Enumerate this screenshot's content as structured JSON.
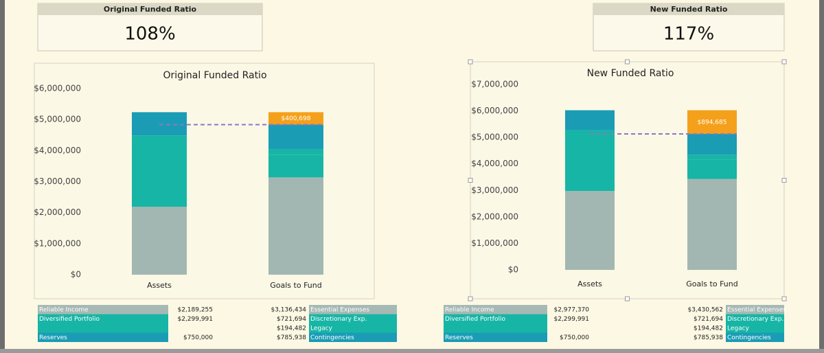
{
  "summaries": [
    {
      "title": "Original Funded Ratio",
      "value": "108%"
    },
    {
      "title": "New Funded Ratio",
      "value": "117%"
    }
  ],
  "chart_data": [
    {
      "type": "bar",
      "stacked": true,
      "title": "Original Funded Ratio",
      "categories": [
        "Assets",
        "Goals to Fund"
      ],
      "ylim": [
        0,
        6000000
      ],
      "yticks": [
        {
          "value": 0,
          "label": "$0"
        },
        {
          "value": 1000000,
          "label": "$1,000,000"
        },
        {
          "value": 2000000,
          "label": "$2,000,000"
        },
        {
          "value": 3000000,
          "label": "$3,000,000"
        },
        {
          "value": 4000000,
          "label": "$4,000,000"
        },
        {
          "value": 5000000,
          "label": "$5,000,000"
        },
        {
          "value": 6000000,
          "label": "$6,000,000"
        }
      ],
      "series": [
        {
          "color": "#a3b7b2",
          "values": [
            2189255,
            3136434
          ]
        },
        {
          "color": "#17b5a5",
          "values": [
            2299991,
            721694
          ]
        },
        {
          "color": "#17b5a5",
          "values": [
            null,
            194482
          ]
        },
        {
          "color": "#1a9cb5",
          "values": [
            750000,
            785938
          ]
        },
        {
          "color": "#f5a01a",
          "values": [
            null,
            400698
          ],
          "value_labels": [
            null,
            "$400,698"
          ]
        }
      ],
      "reference_line": {
        "value": 4838548,
        "color": "#8a78c8"
      }
    },
    {
      "type": "bar",
      "stacked": true,
      "title": "New Funded Ratio",
      "categories": [
        "Assets",
        "Goals to Fund"
      ],
      "ylim": [
        0,
        7000000
      ],
      "yticks": [
        {
          "value": 0,
          "label": "$0"
        },
        {
          "value": 1000000,
          "label": "$1,000,000"
        },
        {
          "value": 2000000,
          "label": "$2,000,000"
        },
        {
          "value": 3000000,
          "label": "$3,000,000"
        },
        {
          "value": 4000000,
          "label": "$4,000,000"
        },
        {
          "value": 5000000,
          "label": "$5,000,000"
        },
        {
          "value": 6000000,
          "label": "$6,000,000"
        },
        {
          "value": 7000000,
          "label": "$7,000,000"
        }
      ],
      "series": [
        {
          "color": "#a3b7b2",
          "values": [
            2977370,
            3430562
          ]
        },
        {
          "color": "#17b5a5",
          "values": [
            2299991,
            721694
          ]
        },
        {
          "color": "#17b5a5",
          "values": [
            null,
            194482
          ]
        },
        {
          "color": "#1a9cb5",
          "values": [
            750000,
            785938
          ]
        },
        {
          "color": "#f5a01a",
          "values": [
            null,
            894685
          ],
          "value_labels": [
            null,
            "$894,685"
          ]
        }
      ],
      "reference_line": {
        "value": 5132676,
        "color": "#8a78c8"
      }
    }
  ],
  "tables": [
    {
      "left": [
        {
          "label": "Reliable Income",
          "value": "$2,189,255",
          "color": "#a6b9b4"
        },
        {
          "label": "Diversified Portfolio",
          "value": "$2,299,991",
          "color": "#17b5a5"
        },
        {
          "label": "Reserves",
          "value": "$750,000",
          "color": "#1a9cb5"
        }
      ],
      "right": [
        {
          "label": "Essential Expenses",
          "value": "$3,136,434",
          "color": "#a6b9b4"
        },
        {
          "label": "Discretionary Exp.",
          "value": "$721,694",
          "color": "#17b5a5"
        },
        {
          "label": "Legacy",
          "value": "$194,482",
          "color": "#17b5a5"
        },
        {
          "label": "Contingencies",
          "value": "$785,938",
          "color": "#1a9cb5"
        }
      ]
    },
    {
      "left": [
        {
          "label": "Reliable Income",
          "value": "$2,977,370",
          "color": "#a6b9b4"
        },
        {
          "label": "Diversified Portfolio",
          "value": "$2,299,991",
          "color": "#17b5a5"
        },
        {
          "label": "Reserves",
          "value": "$750,000",
          "color": "#1a9cb5"
        }
      ],
      "right": [
        {
          "label": "Essential Expenses",
          "value": "$3,430,562",
          "color": "#a6b9b4"
        },
        {
          "label": "Discretionary Exp.",
          "value": "$721,694",
          "color": "#17b5a5"
        },
        {
          "label": "Legacy",
          "value": "$194,482",
          "color": "#17b5a5"
        },
        {
          "label": "Contingencies",
          "value": "$785,938",
          "color": "#1a9cb5"
        }
      ]
    }
  ]
}
